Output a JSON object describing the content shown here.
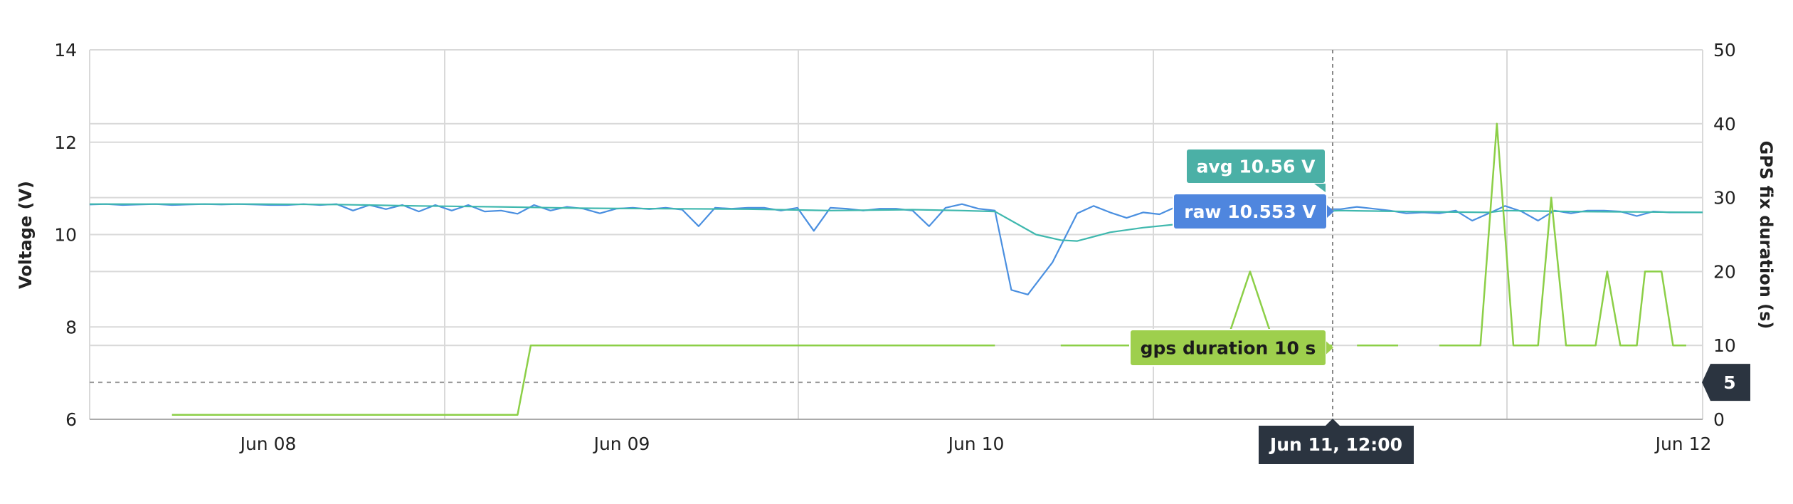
{
  "chart_data": {
    "type": "line",
    "xlabel": "",
    "x_ticks": [
      "Jun 08",
      "Jun 09",
      "Jun 10",
      "Jun 11, 12:00",
      "Jun 12"
    ],
    "y_left": {
      "label": "Voltage (V)",
      "ticks": [
        "6",
        "8",
        "10",
        "12",
        "14"
      ],
      "range": [
        6,
        14
      ]
    },
    "y_right": {
      "label": "GPS fix duration (s)",
      "ticks": [
        "0",
        "10",
        "20",
        "30",
        "40",
        "50"
      ],
      "range": [
        0,
        50
      ]
    },
    "threshold": {
      "value": 5,
      "label": "5",
      "axis": "right"
    },
    "crosshair": {
      "label": "Jun 11, 12:00",
      "x": 4.5
    },
    "series": [
      {
        "key": "raw",
        "axis": "left",
        "color": "#4a8fe0",
        "tooltip": "raw 10.553 V",
        "points": [
          [
            0.0,
            10.65
          ],
          [
            0.1,
            10.66
          ],
          [
            0.2,
            10.64
          ],
          [
            0.3,
            10.65
          ],
          [
            0.4,
            10.66
          ],
          [
            0.5,
            10.64
          ],
          [
            0.6,
            10.65
          ],
          [
            0.7,
            10.66
          ],
          [
            0.8,
            10.65
          ],
          [
            0.9,
            10.66
          ],
          [
            1.0,
            10.65
          ],
          [
            1.1,
            10.64
          ],
          [
            1.2,
            10.64
          ],
          [
            1.3,
            10.66
          ],
          [
            1.4,
            10.64
          ],
          [
            1.5,
            10.66
          ],
          [
            1.6,
            10.52
          ],
          [
            1.7,
            10.64
          ],
          [
            1.8,
            10.55
          ],
          [
            1.9,
            10.64
          ],
          [
            2.0,
            10.5
          ],
          [
            2.1,
            10.64
          ],
          [
            2.2,
            10.52
          ],
          [
            2.3,
            10.64
          ],
          [
            2.4,
            10.5
          ],
          [
            2.5,
            10.52
          ],
          [
            2.6,
            10.45
          ],
          [
            2.7,
            10.64
          ],
          [
            2.8,
            10.52
          ],
          [
            2.9,
            10.6
          ],
          [
            3.0,
            10.56
          ],
          [
            3.1,
            10.46
          ],
          [
            3.2,
            10.56
          ],
          [
            3.3,
            10.58
          ],
          [
            3.4,
            10.55
          ],
          [
            3.5,
            10.58
          ],
          [
            3.6,
            10.54
          ],
          [
            3.7,
            10.18
          ],
          [
            3.8,
            10.58
          ],
          [
            3.9,
            10.56
          ],
          [
            4.0,
            10.58
          ],
          [
            4.1,
            10.58
          ],
          [
            4.2,
            10.52
          ],
          [
            4.3,
            10.58
          ],
          [
            4.4,
            10.08
          ],
          [
            4.5,
            10.58
          ],
          [
            4.6,
            10.56
          ],
          [
            4.7,
            10.52
          ],
          [
            4.8,
            10.56
          ],
          [
            4.9,
            10.56
          ],
          [
            5.0,
            10.52
          ],
          [
            5.1,
            10.18
          ],
          [
            5.2,
            10.58
          ],
          [
            5.3,
            10.66
          ],
          [
            5.4,
            10.56
          ],
          [
            5.5,
            10.52
          ],
          [
            5.6,
            8.8
          ],
          [
            5.7,
            8.7
          ],
          [
            5.85,
            9.4
          ],
          [
            6.0,
            10.46
          ],
          [
            6.1,
            10.62
          ],
          [
            6.2,
            10.48
          ],
          [
            6.3,
            10.36
          ],
          [
            6.4,
            10.48
          ],
          [
            6.5,
            10.44
          ],
          [
            6.6,
            10.6
          ],
          [
            6.7,
            10.52
          ],
          [
            6.8,
            10.46
          ],
          [
            6.9,
            10.55
          ],
          [
            7.0,
            10.52
          ],
          [
            7.1,
            10.58
          ],
          [
            7.2,
            10.55
          ],
          [
            7.3,
            10.56
          ],
          [
            7.4,
            10.5
          ],
          [
            7.5,
            10.55
          ],
          [
            7.6,
            10.55
          ],
          [
            7.7,
            10.6
          ],
          [
            7.8,
            10.56
          ],
          [
            7.9,
            10.52
          ],
          [
            8.0,
            10.46
          ],
          [
            8.1,
            10.48
          ],
          [
            8.2,
            10.46
          ],
          [
            8.3,
            10.52
          ],
          [
            8.4,
            10.3
          ],
          [
            8.5,
            10.46
          ],
          [
            8.6,
            10.62
          ],
          [
            8.7,
            10.5
          ],
          [
            8.8,
            10.3
          ],
          [
            8.9,
            10.52
          ],
          [
            9.0,
            10.46
          ],
          [
            9.1,
            10.52
          ],
          [
            9.2,
            10.52
          ],
          [
            9.3,
            10.5
          ],
          [
            9.4,
            10.4
          ],
          [
            9.5,
            10.5
          ],
          [
            9.6,
            10.48
          ],
          [
            9.7,
            10.48
          ],
          [
            9.8,
            10.48
          ]
        ]
      },
      {
        "key": "avg",
        "axis": "left",
        "color": "#3fb8ae",
        "tooltip": "avg 10.56 V",
        "points": [
          [
            0.0,
            10.66
          ],
          [
            0.5,
            10.66
          ],
          [
            1.0,
            10.66
          ],
          [
            1.5,
            10.65
          ],
          [
            2.0,
            10.62
          ],
          [
            2.5,
            10.6
          ],
          [
            3.0,
            10.57
          ],
          [
            3.5,
            10.56
          ],
          [
            4.0,
            10.55
          ],
          [
            4.5,
            10.52
          ],
          [
            5.0,
            10.54
          ],
          [
            5.3,
            10.52
          ],
          [
            5.5,
            10.5
          ],
          [
            5.6,
            10.3
          ],
          [
            5.75,
            10.0
          ],
          [
            5.9,
            9.88
          ],
          [
            6.0,
            9.86
          ],
          [
            6.2,
            10.05
          ],
          [
            6.4,
            10.15
          ],
          [
            6.6,
            10.22
          ],
          [
            6.8,
            10.3
          ],
          [
            7.0,
            10.4
          ],
          [
            7.3,
            10.48
          ],
          [
            7.6,
            10.52
          ],
          [
            8.0,
            10.5
          ],
          [
            8.5,
            10.48
          ],
          [
            8.6,
            10.52
          ],
          [
            9.0,
            10.5
          ],
          [
            9.4,
            10.49
          ],
          [
            9.8,
            10.48
          ]
        ]
      },
      {
        "key": "gps",
        "axis": "right",
        "color": "#8ccf47",
        "tooltip": "gps duration 10 s",
        "segments": [
          [
            [
              0.5,
              0.6
            ],
            [
              2.6,
              0.6
            ],
            [
              2.68,
              10
            ],
            [
              5.5,
              10
            ]
          ],
          [
            [
              5.9,
              10
            ],
            [
              6.9,
              10
            ],
            [
              7.05,
              20
            ],
            [
              7.2,
              10
            ],
            [
              7.55,
              10
            ]
          ],
          [
            [
              7.7,
              10
            ],
            [
              7.95,
              10
            ]
          ],
          [
            [
              8.2,
              10
            ],
            [
              8.45,
              10
            ],
            [
              8.55,
              40
            ],
            [
              8.65,
              10
            ],
            [
              8.8,
              10
            ],
            [
              8.88,
              30
            ],
            [
              8.97,
              10
            ],
            [
              9.15,
              10
            ],
            [
              9.22,
              20
            ],
            [
              9.3,
              10
            ],
            [
              9.4,
              10
            ],
            [
              9.45,
              20
            ],
            [
              9.55,
              20
            ],
            [
              9.62,
              10
            ],
            [
              9.7,
              10
            ]
          ]
        ]
      }
    ]
  }
}
